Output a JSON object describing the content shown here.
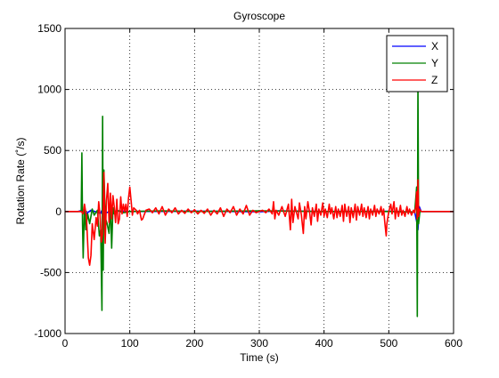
{
  "chart_data": {
    "type": "line",
    "title": "Gyroscope",
    "xlabel": "Time (s)",
    "ylabel": "Rotation Rate (˚/s)",
    "xlim": [
      0,
      600
    ],
    "ylim": [
      -1000,
      1500
    ],
    "xticks": [
      0,
      100,
      200,
      300,
      400,
      500,
      600
    ],
    "yticks": [
      -1000,
      -500,
      0,
      500,
      1000,
      1500
    ],
    "xtick_labels": [
      "0",
      "100",
      "200",
      "300",
      "400",
      "500",
      "600"
    ],
    "ytick_labels": [
      "-1000",
      "-500",
      "0",
      "500",
      "1000",
      "1500"
    ],
    "grid": true,
    "legend_position": "top-right",
    "series": [
      {
        "name": "X",
        "color": "#0000ff",
        "points": [
          [
            0,
            0
          ],
          [
            20,
            0
          ],
          [
            30,
            15
          ],
          [
            32,
            -20
          ],
          [
            40,
            10
          ],
          [
            55,
            -15
          ],
          [
            58,
            20
          ],
          [
            62,
            -10
          ],
          [
            80,
            5
          ],
          [
            100,
            0
          ],
          [
            200,
            3
          ],
          [
            300,
            -2
          ],
          [
            330,
            5
          ],
          [
            400,
            0
          ],
          [
            500,
            2
          ],
          [
            540,
            -5
          ],
          [
            543,
            -80
          ],
          [
            545,
            -150
          ],
          [
            547,
            40
          ],
          [
            550,
            0
          ],
          [
            600,
            0
          ]
        ]
      },
      {
        "name": "Y",
        "color": "#008000",
        "points": [
          [
            0,
            0
          ],
          [
            25,
            0
          ],
          [
            26,
            480
          ],
          [
            27,
            -100
          ],
          [
            28,
            -380
          ],
          [
            30,
            50
          ],
          [
            32,
            -150
          ],
          [
            35,
            -20
          ],
          [
            38,
            -100
          ],
          [
            42,
            20
          ],
          [
            45,
            -30
          ],
          [
            50,
            10
          ],
          [
            53,
            -200
          ],
          [
            55,
            -150
          ],
          [
            57,
            -810
          ],
          [
            58,
            780
          ],
          [
            59,
            -480
          ],
          [
            60,
            340
          ],
          [
            62,
            -50
          ],
          [
            65,
            -100
          ],
          [
            68,
            -180
          ],
          [
            70,
            80
          ],
          [
            72,
            -300
          ],
          [
            74,
            30
          ],
          [
            76,
            -20
          ],
          [
            80,
            10
          ],
          [
            90,
            -10
          ],
          [
            100,
            0
          ],
          [
            150,
            5
          ],
          [
            200,
            0
          ],
          [
            300,
            5
          ],
          [
            400,
            0
          ],
          [
            500,
            0
          ],
          [
            540,
            -5
          ],
          [
            543,
            200
          ],
          [
            544,
            -860
          ],
          [
            545,
            1080
          ],
          [
            546,
            -100
          ],
          [
            548,
            0
          ],
          [
            550,
            0
          ],
          [
            600,
            0
          ]
        ]
      },
      {
        "name": "Z",
        "color": "#ff0000",
        "points": [
          [
            0,
            0
          ],
          [
            25,
            0
          ],
          [
            28,
            -20
          ],
          [
            30,
            60
          ],
          [
            33,
            -40
          ],
          [
            36,
            -380
          ],
          [
            38,
            -440
          ],
          [
            40,
            -360
          ],
          [
            42,
            -100
          ],
          [
            45,
            -230
          ],
          [
            48,
            -50
          ],
          [
            50,
            -120
          ],
          [
            52,
            80
          ],
          [
            54,
            -30
          ],
          [
            56,
            -250
          ],
          [
            58,
            -180
          ],
          [
            60,
            320
          ],
          [
            62,
            -260
          ],
          [
            64,
            90
          ],
          [
            66,
            230
          ],
          [
            68,
            -90
          ],
          [
            70,
            150
          ],
          [
            72,
            -60
          ],
          [
            74,
            130
          ],
          [
            76,
            40
          ],
          [
            78,
            -90
          ],
          [
            80,
            100
          ],
          [
            82,
            -100
          ],
          [
            84,
            -60
          ],
          [
            86,
            120
          ],
          [
            88,
            -20
          ],
          [
            90,
            60
          ],
          [
            92,
            0
          ],
          [
            94,
            60
          ],
          [
            96,
            -40
          ],
          [
            98,
            110
          ],
          [
            100,
            200
          ],
          [
            102,
            90
          ],
          [
            104,
            -30
          ],
          [
            106,
            30
          ],
          [
            110,
            10
          ],
          [
            112,
            -20
          ],
          [
            115,
            10
          ],
          [
            118,
            -70
          ],
          [
            120,
            -60
          ],
          [
            122,
            -30
          ],
          [
            125,
            10
          ],
          [
            130,
            20
          ],
          [
            135,
            -10
          ],
          [
            140,
            30
          ],
          [
            145,
            -20
          ],
          [
            150,
            40
          ],
          [
            155,
            -30
          ],
          [
            160,
            20
          ],
          [
            165,
            -10
          ],
          [
            170,
            30
          ],
          [
            175,
            -20
          ],
          [
            180,
            10
          ],
          [
            185,
            -15
          ],
          [
            190,
            20
          ],
          [
            195,
            -10
          ],
          [
            200,
            15
          ],
          [
            205,
            -20
          ],
          [
            210,
            10
          ],
          [
            215,
            -15
          ],
          [
            220,
            20
          ],
          [
            225,
            -30
          ],
          [
            230,
            10
          ],
          [
            235,
            -20
          ],
          [
            240,
            30
          ],
          [
            245,
            -40
          ],
          [
            250,
            20
          ],
          [
            255,
            -10
          ],
          [
            260,
            40
          ],
          [
            265,
            -30
          ],
          [
            270,
            20
          ],
          [
            275,
            -20
          ],
          [
            280,
            50
          ],
          [
            285,
            -30
          ],
          [
            290,
            10
          ],
          [
            295,
            -10
          ],
          [
            300,
            0
          ],
          [
            305,
            10
          ],
          [
            310,
            -10
          ],
          [
            315,
            20
          ],
          [
            320,
            -20
          ],
          [
            322,
            80
          ],
          [
            324,
            -60
          ],
          [
            326,
            10
          ],
          [
            330,
            -30
          ],
          [
            335,
            40
          ],
          [
            340,
            -40
          ],
          [
            345,
            60
          ],
          [
            348,
            -150
          ],
          [
            350,
            100
          ],
          [
            352,
            -90
          ],
          [
            355,
            40
          ],
          [
            360,
            -60
          ],
          [
            362,
            70
          ],
          [
            365,
            -30
          ],
          [
            368,
            -180
          ],
          [
            370,
            40
          ],
          [
            372,
            -60
          ],
          [
            375,
            80
          ],
          [
            378,
            -20
          ],
          [
            380,
            -110
          ],
          [
            382,
            30
          ],
          [
            385,
            -40
          ],
          [
            388,
            60
          ],
          [
            390,
            -80
          ],
          [
            392,
            20
          ],
          [
            395,
            -30
          ],
          [
            398,
            70
          ],
          [
            400,
            -40
          ],
          [
            402,
            20
          ],
          [
            405,
            -50
          ],
          [
            408,
            60
          ],
          [
            410,
            -20
          ],
          [
            412,
            30
          ],
          [
            415,
            -60
          ],
          [
            418,
            40
          ],
          [
            420,
            -50
          ],
          [
            422,
            20
          ],
          [
            425,
            -40
          ],
          [
            428,
            50
          ],
          [
            430,
            -80
          ],
          [
            432,
            60
          ],
          [
            435,
            -40
          ],
          [
            438,
            40
          ],
          [
            440,
            -90
          ],
          [
            442,
            30
          ],
          [
            445,
            -50
          ],
          [
            448,
            60
          ],
          [
            450,
            -70
          ],
          [
            452,
            40
          ],
          [
            455,
            -30
          ],
          [
            458,
            60
          ],
          [
            460,
            -40
          ],
          [
            462,
            30
          ],
          [
            465,
            -50
          ],
          [
            468,
            40
          ],
          [
            470,
            -60
          ],
          [
            472,
            20
          ],
          [
            475,
            -30
          ],
          [
            478,
            50
          ],
          [
            480,
            -40
          ],
          [
            482,
            20
          ],
          [
            485,
            -20
          ],
          [
            488,
            40
          ],
          [
            490,
            -30
          ],
          [
            492,
            20
          ],
          [
            494,
            -100
          ],
          [
            496,
            -200
          ],
          [
            497,
            -100
          ],
          [
            500,
            0
          ],
          [
            503,
            60
          ],
          [
            505,
            -20
          ],
          [
            508,
            80
          ],
          [
            510,
            -60
          ],
          [
            512,
            30
          ],
          [
            515,
            -40
          ],
          [
            518,
            50
          ],
          [
            520,
            -30
          ],
          [
            522,
            10
          ],
          [
            525,
            -40
          ],
          [
            528,
            40
          ],
          [
            530,
            -20
          ],
          [
            532,
            20
          ],
          [
            535,
            -30
          ],
          [
            538,
            10
          ],
          [
            540,
            -10
          ],
          [
            542,
            50
          ],
          [
            543,
            160
          ],
          [
            544,
            -60
          ],
          [
            545,
            260
          ],
          [
            546,
            -40
          ],
          [
            547,
            20
          ],
          [
            550,
            0
          ],
          [
            600,
            0
          ]
        ]
      }
    ]
  }
}
